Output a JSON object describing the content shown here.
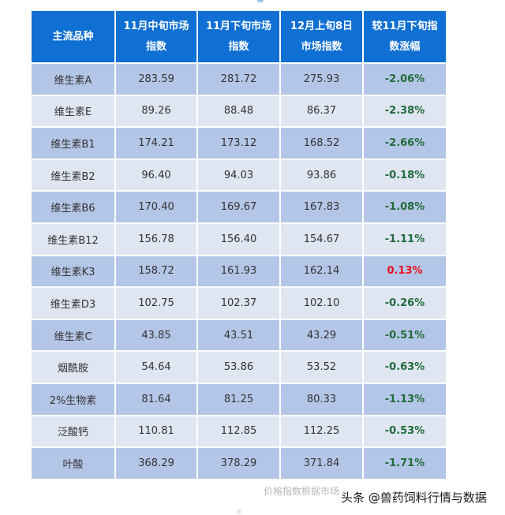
{
  "table": {
    "headers": [
      "主流品种",
      "11月中旬市场指数",
      "11月下旬市场指数",
      "12月上旬8日市场指数",
      "较11月下旬指数涨幅"
    ],
    "rows": [
      {
        "name": "维生素A",
        "mid_nov": "283.59",
        "late_nov": "281.72",
        "early_dec": "275.93",
        "change": "-2.06%"
      },
      {
        "name": "维生素E",
        "mid_nov": "89.26",
        "late_nov": "88.48",
        "early_dec": "86.37",
        "change": "-2.38%"
      },
      {
        "name": "维生素B1",
        "mid_nov": "174.21",
        "late_nov": "173.12",
        "early_dec": "168.52",
        "change": "-2.66%"
      },
      {
        "name": "维生素B2",
        "mid_nov": "96.40",
        "late_nov": "94.03",
        "early_dec": "93.86",
        "change": "-0.18%"
      },
      {
        "name": "维生素B6",
        "mid_nov": "170.40",
        "late_nov": "169.67",
        "early_dec": "167.83",
        "change": "-1.08%"
      },
      {
        "name": "维生素B12",
        "mid_nov": "156.78",
        "late_nov": "156.40",
        "early_dec": "154.67",
        "change": "-1.11%"
      },
      {
        "name": "维生素K3",
        "mid_nov": "158.72",
        "late_nov": "161.93",
        "early_dec": "162.14",
        "change": "0.13%"
      },
      {
        "name": "维生素D3",
        "mid_nov": "102.75",
        "late_nov": "102.37",
        "early_dec": "102.10",
        "change": "-0.26%"
      },
      {
        "name": "维生素C",
        "mid_nov": "43.85",
        "late_nov": "43.51",
        "early_dec": "43.29",
        "change": "-0.51%"
      },
      {
        "name": "烟酰胺",
        "mid_nov": "54.64",
        "late_nov": "53.86",
        "early_dec": "53.52",
        "change": "-0.63%"
      },
      {
        "name": "2%生物素",
        "mid_nov": "81.64",
        "late_nov": "81.25",
        "early_dec": "80.33",
        "change": "-1.13%"
      },
      {
        "name": "泛酸钙",
        "mid_nov": "110.81",
        "late_nov": "112.85",
        "early_dec": "112.25",
        "change": "-0.53%"
      },
      {
        "name": "叶酸",
        "mid_nov": "368.29",
        "late_nov": "378.29",
        "early_dec": "371.84",
        "change": "-1.71%"
      }
    ]
  },
  "footer": {
    "note": "价格指数根据市场",
    "brand": "头条 @兽药饲料行情与数据"
  },
  "colors": {
    "header_bg": "#0f6fd3",
    "row_odd": "#b4c6e7",
    "row_even": "#dfe5f1",
    "negative": "#1f6b3a",
    "positive": "#e8111b"
  }
}
